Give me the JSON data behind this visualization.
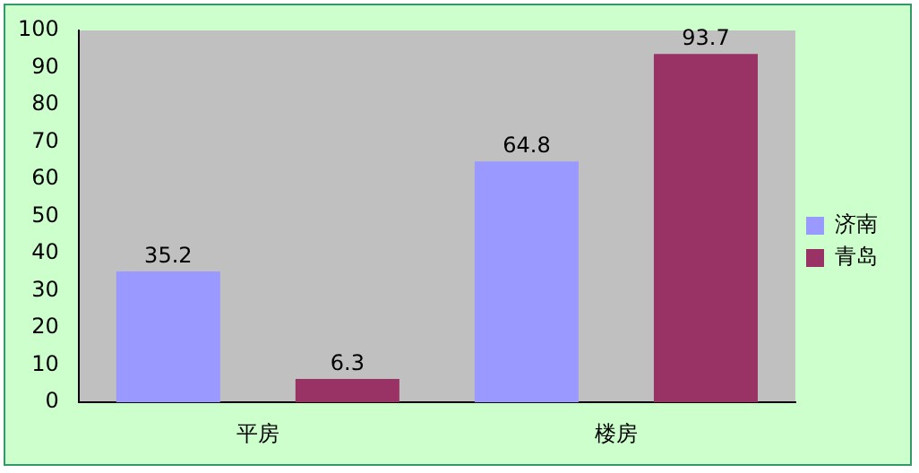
{
  "chart_data": {
    "type": "bar",
    "categories": [
      "平房",
      "楼房"
    ],
    "series": [
      {
        "name": "济南",
        "color": "#9999ff",
        "values": [
          35.2,
          64.8
        ]
      },
      {
        "name": "青岛",
        "color": "#993366",
        "values": [
          6.3,
          93.7
        ]
      }
    ],
    "ylim": [
      0,
      100
    ],
    "yticks": [
      0,
      10,
      20,
      30,
      40,
      50,
      60,
      70,
      80,
      90,
      100
    ],
    "grid": false,
    "legend": "right",
    "data_labels": true
  }
}
